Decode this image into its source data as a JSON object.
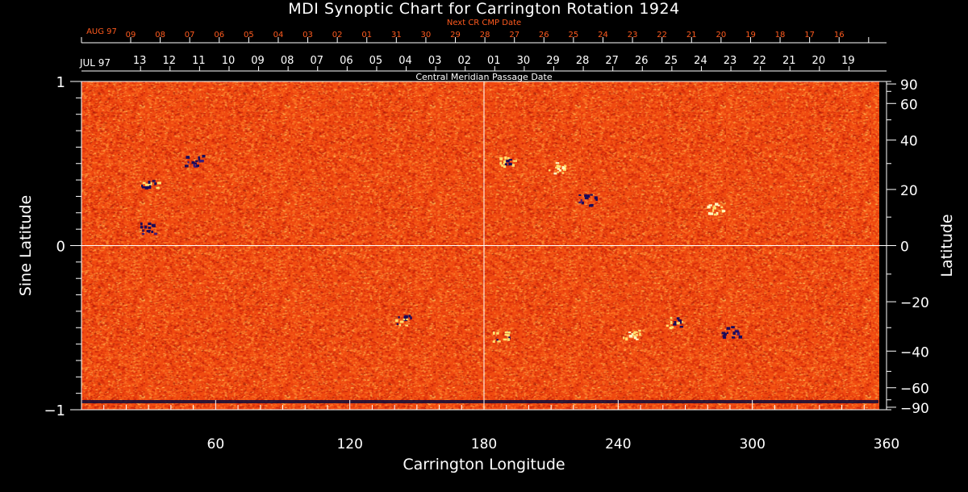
{
  "title": "MDI Synoptic Chart for Carrington Rotation 1924",
  "colors": {
    "background": "#000000",
    "axes": "#ffffff",
    "next_cr_labels": "#ff5a1e",
    "field_base": "#f04a10",
    "positive": "#ffe070",
    "negative": "#1a0a5a",
    "no_data": "#0a0a3a"
  },
  "chart_data": {
    "type": "heatmap",
    "title": "MDI Synoptic Chart for Carrington Rotation 1924",
    "xlabel": "Carrington Longitude",
    "ylabel_left": "Sine Latitude",
    "ylabel_right": "Latitude",
    "xlim": [
      0,
      360
    ],
    "ylim": [
      -1,
      1
    ],
    "x_ticks": [
      60,
      120,
      180,
      240,
      300,
      360
    ],
    "y_ticks_left": [
      {
        "value": 1,
        "label": "1"
      },
      {
        "value": 0,
        "label": "0"
      },
      {
        "value": -1,
        "label": "−1"
      }
    ],
    "y_ticks_right": [
      {
        "lat": 90,
        "label": "90"
      },
      {
        "lat": 60,
        "label": "60"
      },
      {
        "lat": 40,
        "label": "40"
      },
      {
        "lat": 20,
        "label": "20"
      },
      {
        "lat": 0,
        "label": "0"
      },
      {
        "lat": -20,
        "label": "−20"
      },
      {
        "lat": -40,
        "label": "−40"
      },
      {
        "lat": -60,
        "label": "−60"
      },
      {
        "lat": -90,
        "label": "−90"
      }
    ],
    "crosshair": {
      "longitude": 180,
      "sine_latitude": 0
    },
    "next_cr": {
      "title": "Next CR CMP Date",
      "month_label": "AUG 97",
      "ticks": [
        {
          "lon": 0,
          "label": ""
        },
        {
          "lon": 22,
          "label": "09"
        },
        {
          "lon": 35.2,
          "label": "08"
        },
        {
          "lon": 48.4,
          "label": "07"
        },
        {
          "lon": 61.6,
          "label": "06"
        },
        {
          "lon": 74.8,
          "label": "05"
        },
        {
          "lon": 88,
          "label": "04"
        },
        {
          "lon": 101.2,
          "label": "03"
        },
        {
          "lon": 114.4,
          "label": "02"
        },
        {
          "lon": 127.6,
          "label": "01"
        },
        {
          "lon": 140.8,
          "label": "31"
        },
        {
          "lon": 154,
          "label": "30"
        },
        {
          "lon": 167.2,
          "label": "29"
        },
        {
          "lon": 180.4,
          "label": "28"
        },
        {
          "lon": 193.6,
          "label": "27"
        },
        {
          "lon": 206.8,
          "label": "26"
        },
        {
          "lon": 220,
          "label": "25"
        },
        {
          "lon": 233.2,
          "label": "24"
        },
        {
          "lon": 246.4,
          "label": "23"
        },
        {
          "lon": 259.6,
          "label": "22"
        },
        {
          "lon": 272.8,
          "label": "21"
        },
        {
          "lon": 286,
          "label": "20"
        },
        {
          "lon": 299.2,
          "label": "19"
        },
        {
          "lon": 312.4,
          "label": "18"
        },
        {
          "lon": 325.6,
          "label": "17"
        },
        {
          "lon": 338.8,
          "label": "16"
        },
        {
          "lon": 352,
          "label": ""
        }
      ]
    },
    "cmp": {
      "title": "Central Meridian Passage Date",
      "month_label": "JUL 97",
      "ticks": [
        {
          "lon": 26.4,
          "label": "13"
        },
        {
          "lon": 39.6,
          "label": "12"
        },
        {
          "lon": 52.8,
          "label": "11"
        },
        {
          "lon": 66,
          "label": "10"
        },
        {
          "lon": 79.2,
          "label": "09"
        },
        {
          "lon": 92.4,
          "label": "08"
        },
        {
          "lon": 105.6,
          "label": "07"
        },
        {
          "lon": 118.8,
          "label": "06"
        },
        {
          "lon": 132,
          "label": "05"
        },
        {
          "lon": 145.2,
          "label": "04"
        },
        {
          "lon": 158.4,
          "label": "03"
        },
        {
          "lon": 171.6,
          "label": "02"
        },
        {
          "lon": 184.8,
          "label": "01"
        },
        {
          "lon": 198,
          "label": "30"
        },
        {
          "lon": 211.2,
          "label": "29"
        },
        {
          "lon": 224.4,
          "label": "28"
        },
        {
          "lon": 237.6,
          "label": "27"
        },
        {
          "lon": 250.8,
          "label": "26"
        },
        {
          "lon": 264,
          "label": "25"
        },
        {
          "lon": 277.2,
          "label": "24"
        },
        {
          "lon": 290.4,
          "label": "23"
        },
        {
          "lon": 303.6,
          "label": "22"
        },
        {
          "lon": 316.8,
          "label": "21"
        },
        {
          "lon": 330,
          "label": "20"
        },
        {
          "lon": 343.2,
          "label": "19"
        }
      ]
    },
    "active_regions": [
      {
        "lon": 143,
        "sinlat": -0.45,
        "polarity": "mixed"
      },
      {
        "lon": 187,
        "sinlat": -0.55,
        "polarity": "mixed"
      },
      {
        "lon": 190,
        "sinlat": 0.52,
        "polarity": "mixed"
      },
      {
        "lon": 212,
        "sinlat": 0.48,
        "polarity": "positive"
      },
      {
        "lon": 265,
        "sinlat": -0.46,
        "polarity": "mixed"
      },
      {
        "lon": 290,
        "sinlat": -0.52,
        "polarity": "negative"
      },
      {
        "lon": 30,
        "sinlat": 0.38,
        "polarity": "mixed"
      },
      {
        "lon": 30,
        "sinlat": 0.11,
        "polarity": "negative"
      },
      {
        "lon": 50,
        "sinlat": 0.52,
        "polarity": "negative"
      },
      {
        "lon": 226,
        "sinlat": 0.28,
        "polarity": "negative"
      },
      {
        "lon": 283,
        "sinlat": 0.23,
        "polarity": "positive"
      },
      {
        "lon": 246,
        "sinlat": -0.54,
        "polarity": "positive"
      }
    ]
  }
}
